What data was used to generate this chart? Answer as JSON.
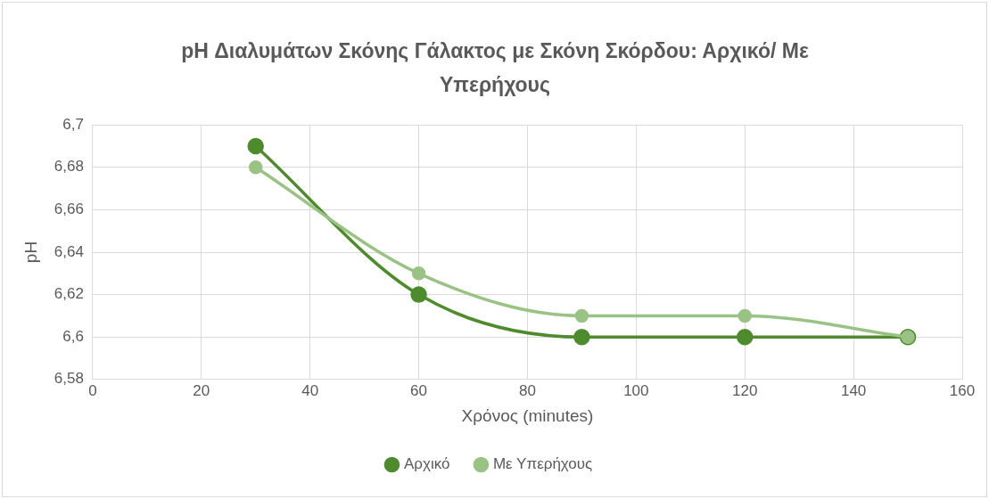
{
  "chart_data": {
    "type": "line",
    "title": "pH Διαλυμάτων Σκόνης Γάλακτος με Σκόνη Σκόρδου: Αρχικό/ Με Υπερήχους",
    "xlabel": "Χρόνος (minutes)",
    "ylabel": "pH",
    "x": [
      30,
      60,
      90,
      120,
      150
    ],
    "series": [
      {
        "name": "Αρχικό",
        "color": "#4e8a2e",
        "values": [
          6.69,
          6.62,
          6.6,
          6.6,
          6.6
        ]
      },
      {
        "name": "Με Υπερήχους",
        "color": "#9bc285",
        "values": [
          6.68,
          6.63,
          6.61,
          6.61,
          6.6
        ]
      }
    ],
    "xlim": [
      0,
      160
    ],
    "xticks": [
      0,
      20,
      40,
      60,
      80,
      100,
      120,
      140,
      160
    ],
    "ylim": [
      6.58,
      6.7
    ],
    "yticks": [
      {
        "value": 6.58,
        "label": "6,58"
      },
      {
        "value": 6.6,
        "label": "6,6"
      },
      {
        "value": 6.62,
        "label": "6,62"
      },
      {
        "value": 6.64,
        "label": "6,64"
      },
      {
        "value": 6.66,
        "label": "6,66"
      },
      {
        "value": 6.68,
        "label": "6,68"
      },
      {
        "value": 6.7,
        "label": "6,7"
      }
    ],
    "grid": true,
    "legend": "bottom",
    "marker": "circle",
    "line_style": "solid"
  }
}
